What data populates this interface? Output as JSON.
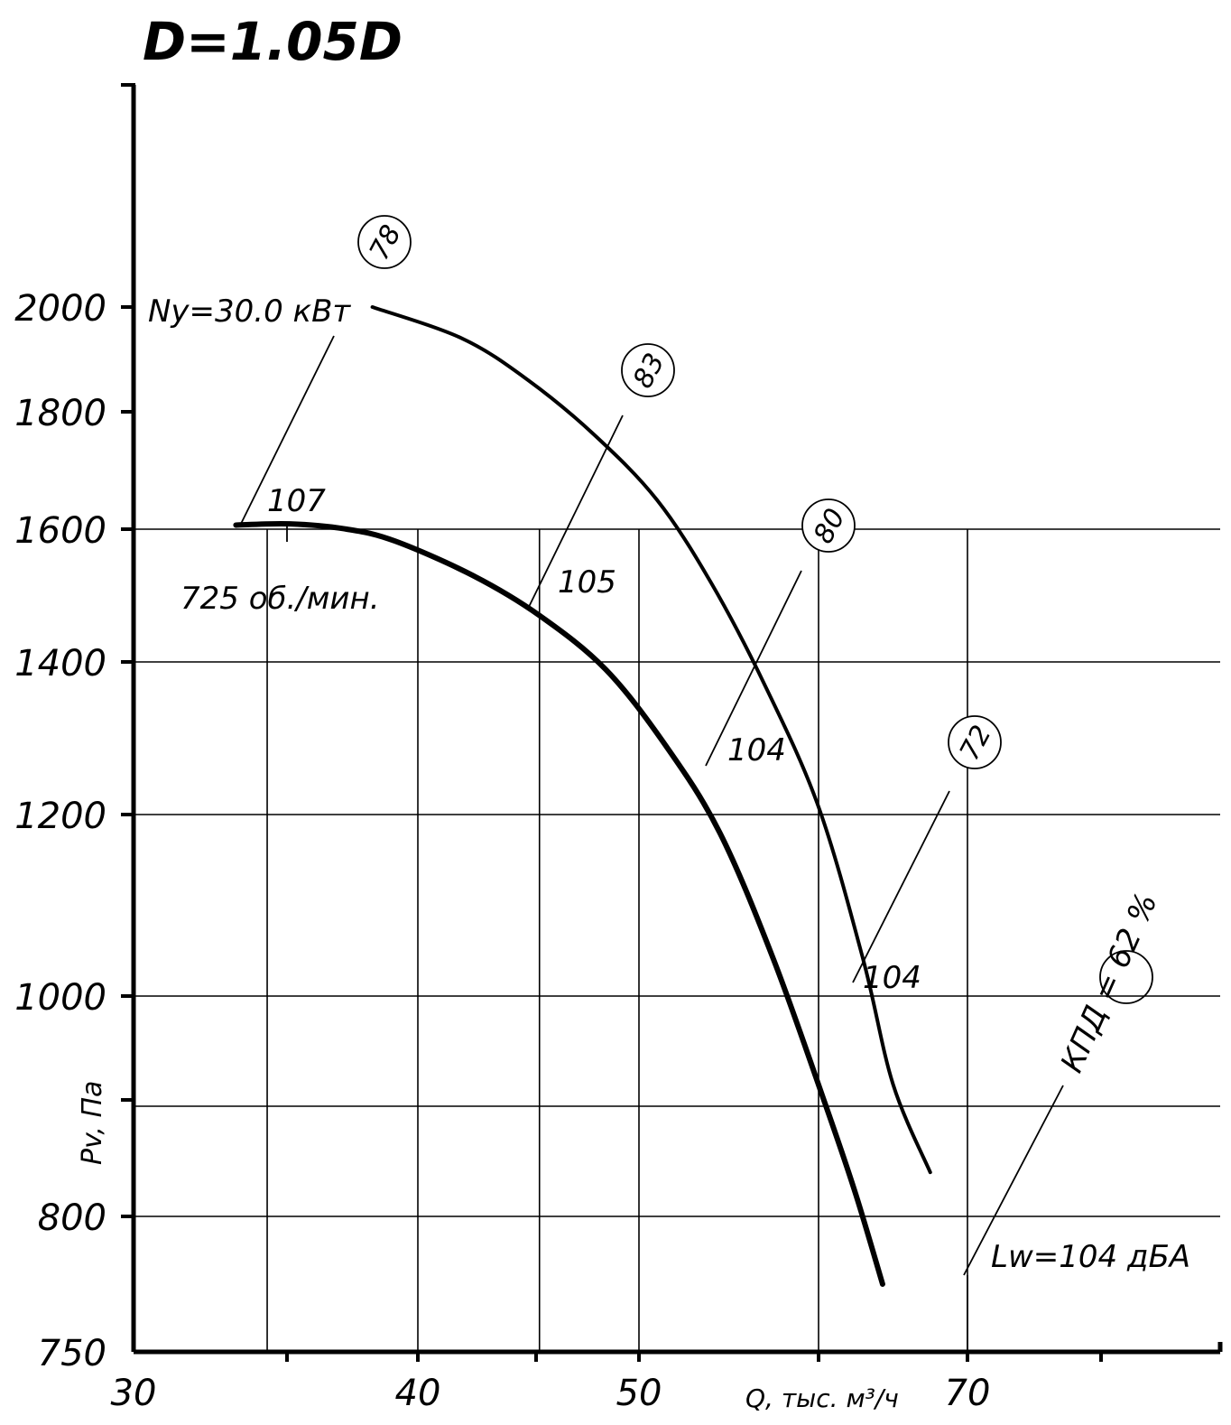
{
  "chart_data": {
    "type": "line",
    "title": "D=1.05D",
    "xlabel": "Q, тыс. м³/ч",
    "ylabel": "Pv, Па",
    "x_ticks": [
      30,
      40,
      50,
      70
    ],
    "y_ticks": [
      750,
      800,
      1000,
      1200,
      1400,
      1600,
      1800,
      2000
    ],
    "grid": true,
    "series": [
      {
        "role": "pressure-curve",
        "points": [
          [
            33.6,
            1607
          ],
          [
            35.5,
            1609
          ],
          [
            37.5,
            1600
          ],
          [
            39.2,
            1582
          ],
          [
            42.5,
            1530
          ],
          [
            45.5,
            1470
          ],
          [
            48.5,
            1390
          ],
          [
            51.5,
            1290
          ],
          [
            54.5,
            1180
          ],
          [
            57.5,
            1040
          ],
          [
            60.5,
            900
          ],
          [
            62.5,
            820
          ],
          [
            64.3,
            775
          ]
        ]
      },
      {
        "role": "efficiency-curve",
        "points": [
          [
            38.4,
            2013
          ],
          [
            42,
            1940
          ],
          [
            45,
            1860
          ],
          [
            48,
            1760
          ],
          [
            51,
            1650
          ],
          [
            54,
            1520
          ],
          [
            57,
            1370
          ],
          [
            60,
            1210
          ],
          [
            63,
            1040
          ],
          [
            65,
            920
          ],
          [
            67.5,
            840
          ]
        ]
      }
    ],
    "efficiency_labels": [
      "78",
      "83",
      "80",
      "72"
    ],
    "noise_labels": [
      "107",
      "105",
      "104",
      "104"
    ],
    "annotations": {
      "power": "Ny=30.0 кВт",
      "speed": "725 об./мин.",
      "efficiency": "КПД = 62 %",
      "noise": "Lw=104 дБА"
    }
  }
}
